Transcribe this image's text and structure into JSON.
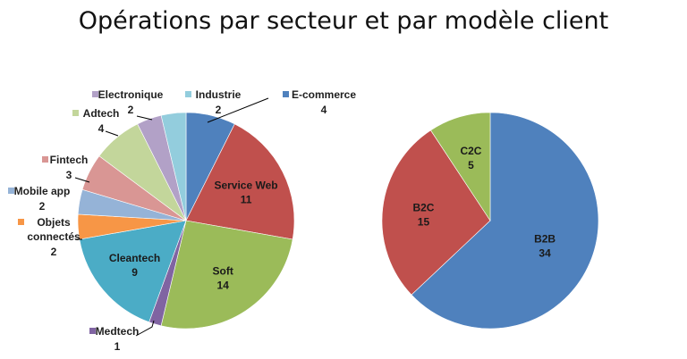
{
  "title": "Opérations par secteur et par modèle client",
  "chart_data": [
    {
      "type": "pie",
      "categories": [
        "E-commerce",
        "Service Web",
        "Soft",
        "Medtech",
        "Cleantech",
        "Objets connectés",
        "Mobile app",
        "Fintech",
        "Adtech",
        "Electronique",
        "Industrie"
      ],
      "values": [
        4,
        11,
        14,
        1,
        9,
        2,
        2,
        3,
        4,
        2,
        2
      ],
      "colors": [
        "#4f81bd",
        "#c0504d",
        "#9bbb59",
        "#8064a2",
        "#4bacc6",
        "#f79646",
        "#95b3d7",
        "#d99694",
        "#c3d69b",
        "#b2a1c7",
        "#93cddd"
      ]
    },
    {
      "type": "pie",
      "categories": [
        "B2B",
        "B2C",
        "C2C"
      ],
      "values": [
        34,
        15,
        5
      ],
      "colors": [
        "#4f81bd",
        "#c0504d",
        "#9bbb59"
      ]
    }
  ]
}
